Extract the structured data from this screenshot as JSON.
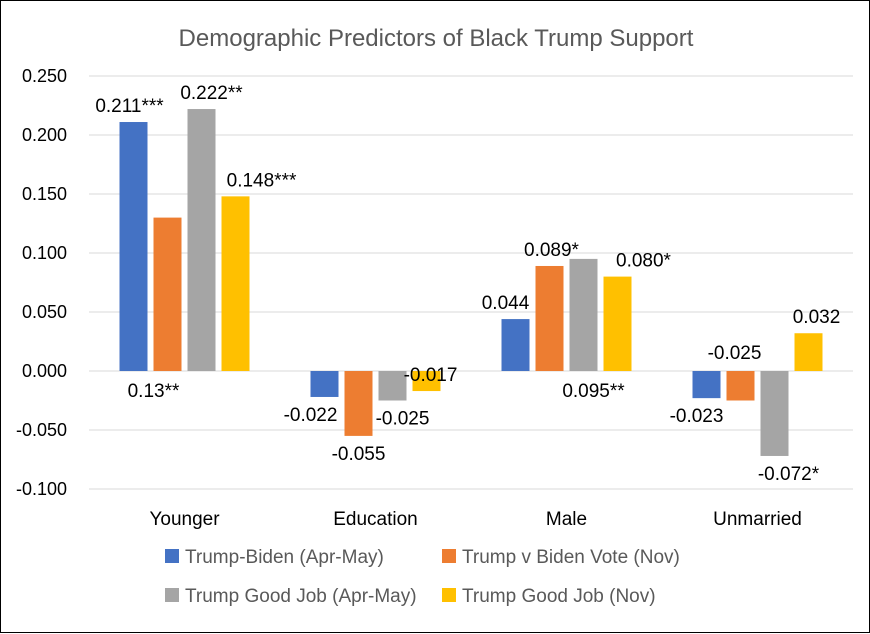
{
  "chart_data": {
    "type": "bar",
    "title": "Demographic Predictors of Black Trump Support",
    "xlabel": "",
    "ylabel": "",
    "ylim": [
      -0.1,
      0.25
    ],
    "yticks": [
      "0.250",
      "0.200",
      "0.150",
      "0.100",
      "0.050",
      "0.000",
      "-0.050",
      "-0.100"
    ],
    "grid": true,
    "legend_position": "bottom",
    "categories": [
      "Younger",
      "Education",
      "Male",
      "Unmarried"
    ],
    "series": [
      {
        "name": "Trump-Biden (Apr-May)",
        "color": "#4472C4",
        "values": [
          0.211,
          -0.022,
          0.044,
          -0.023
        ],
        "labels": [
          "0.211***",
          "-0.022",
          "0.044",
          "-0.023"
        ]
      },
      {
        "name": "Trump v Biden Vote (Nov)",
        "color": "#ED7D31",
        "values": [
          0.13,
          -0.055,
          0.089,
          -0.025
        ],
        "labels": [
          "0.13**",
          "-0.055",
          "0.089*",
          "-0.025"
        ]
      },
      {
        "name": "Trump Good Job (Apr-May)",
        "color": "#A5A5A5",
        "values": [
          0.222,
          -0.025,
          0.095,
          -0.072
        ],
        "labels": [
          "0.222**",
          "-0.025",
          "0.095**",
          "-0.072*"
        ]
      },
      {
        "name": "Trump Good Job (Nov)",
        "color": "#FFC000",
        "values": [
          0.148,
          -0.017,
          0.08,
          0.032
        ],
        "labels": [
          "0.148***",
          "-0.017",
          "0.080*",
          "0.032"
        ]
      }
    ]
  }
}
